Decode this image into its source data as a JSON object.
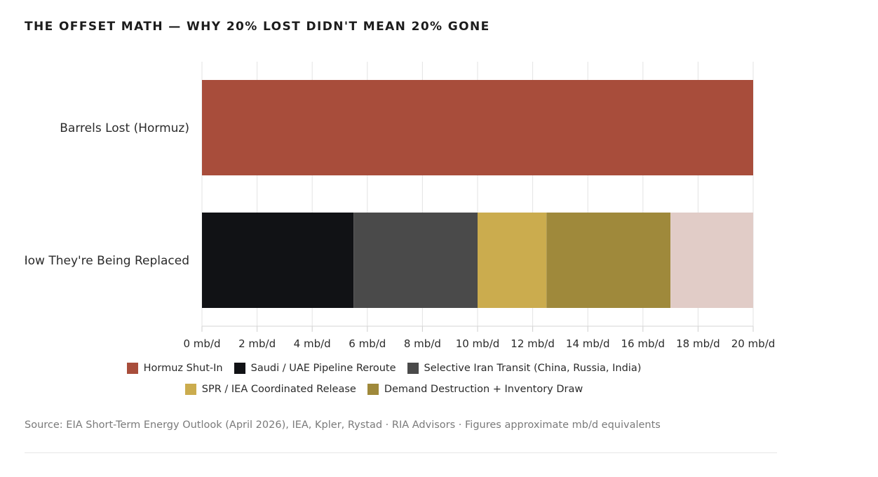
{
  "title": "THE OFFSET MATH — WHY 20% LOST DIDN'T MEAN 20% GONE",
  "chart_data": {
    "type": "bar",
    "orientation": "horizontal",
    "stacked": true,
    "title": "THE OFFSET MATH — WHY 20% LOST DIDN'T MEAN 20% GONE",
    "categories": [
      "Barrels Lost (Hormuz)",
      "How They're Being Replaced"
    ],
    "xlim": [
      0,
      20
    ],
    "x_ticks": [
      0,
      2,
      4,
      6,
      8,
      10,
      12,
      14,
      16,
      18,
      20
    ],
    "x_tick_labels": [
      "0 mb/d",
      "2 mb/d",
      "4 mb/d",
      "6 mb/d",
      "8 mb/d",
      "10 mb/d",
      "12 mb/d",
      "14 mb/d",
      "16 mb/d",
      "18 mb/d",
      "20 mb/d"
    ],
    "grid": "vertical",
    "legend_position": "bottom",
    "series": [
      {
        "name": "Hormuz Shut-In",
        "color": "#a84d3b",
        "values": [
          20,
          0
        ]
      },
      {
        "name": "Saudi / UAE Pipeline Reroute",
        "color": "#111215",
        "values": [
          0,
          5.5
        ]
      },
      {
        "name": "Selective Iran Transit (China, Russia, India)",
        "color": "#4a4a4a",
        "values": [
          0,
          4.5
        ]
      },
      {
        "name": "SPR / IEA Coordinated Release",
        "color": "#cbac4e",
        "values": [
          0,
          2.5
        ]
      },
      {
        "name": "Demand Destruction + Inventory Draw",
        "color": "#9f893b",
        "values": [
          0,
          4.5
        ]
      },
      {
        "name": "",
        "color": "#e1ccc7",
        "values": [
          0,
          3
        ]
      }
    ]
  },
  "legend_rows": [
    [
      {
        "label": "Hormuz Shut-In",
        "color": "#a84d3b"
      },
      {
        "label": "Saudi / UAE Pipeline Reroute",
        "color": "#111215"
      },
      {
        "label": "Selective Iran Transit (China, Russia, India)",
        "color": "#4a4a4a"
      }
    ],
    [
      {
        "label": "SPR / IEA Coordinated Release",
        "color": "#cbac4e"
      },
      {
        "label": "Demand Destruction + Inventory Draw",
        "color": "#9f893b"
      }
    ]
  ],
  "source_note": "Source: EIA Short-Term Energy Outlook (April 2026), IEA, Kpler, Rystad · RIA Advisors · Figures approximate mb/d equivalents"
}
